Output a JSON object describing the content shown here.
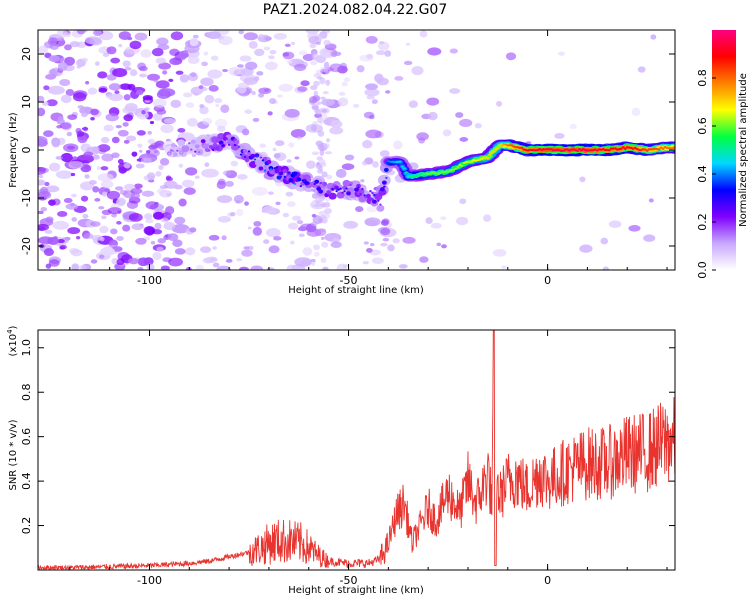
{
  "figure": {
    "title": "PAZ1.2024.082.04.22.G07"
  },
  "chart_data": [
    {
      "type": "heatmap",
      "title": "PAZ1.2024.082.04.22.G07",
      "xlabel": "Height of straight line (km)",
      "ylabel": "Frequency (Hz)",
      "xlim": [
        -128,
        32
      ],
      "ylim": [
        -25,
        25
      ],
      "xticks": [
        -100,
        -50,
        0
      ],
      "yticks": [
        -20,
        -10,
        0,
        10,
        20
      ],
      "colorbar": {
        "label": "Normalized spectral amplitude",
        "range": [
          0,
          1
        ],
        "ticks": [
          "0.0",
          "0.2",
          "0.4",
          "0.6",
          "0.8"
        ],
        "colors": [
          "#ffffff",
          "#c8a8ff",
          "#7f00ff",
          "#0000ff",
          "#00d8ff",
          "#00ff40",
          "#ffff00",
          "#ff8000",
          "#ff0000",
          "#ff0080"
        ]
      },
      "ridge": {
        "name_hint": "signal frequency track",
        "x": [
          -95,
          -90,
          -85,
          -80,
          -75,
          -70,
          -65,
          -60,
          -55,
          -50,
          -45,
          -42,
          -40,
          -37,
          -35,
          -30,
          -25,
          -20,
          -15,
          -12,
          -10,
          -5,
          0,
          5,
          10,
          15,
          20,
          25,
          30,
          32
        ],
        "y": [
          0,
          0.5,
          1,
          2,
          -1.5,
          -3.5,
          -5.5,
          -7,
          -8.5,
          -8,
          -9.5,
          -11,
          -2.5,
          -2.5,
          -5.5,
          -5,
          -4.5,
          -2.5,
          -1.5,
          1,
          1,
          0,
          0,
          0,
          0,
          0,
          0.5,
          0,
          0.5,
          0.5
        ],
        "amplitude": [
          0.15,
          0.2,
          0.25,
          0.3,
          0.3,
          0.35,
          0.35,
          0.3,
          0.3,
          0.3,
          0.3,
          0.3,
          0.4,
          0.45,
          0.5,
          0.6,
          0.6,
          0.65,
          0.7,
          0.7,
          0.8,
          0.9,
          0.95,
          0.95,
          0.95,
          0.9,
          0.9,
          0.85,
          0.8,
          0.8
        ]
      }
    },
    {
      "type": "line",
      "xlabel": "Height of straight line (km)",
      "ylabel": "SNR (10 * v/v)",
      "y_multiplier": "(x10",
      "y_multiplier_exp": "4",
      "y_multiplier_close": ")",
      "xlim": [
        -128,
        32
      ],
      "ylim": [
        0,
        1.08
      ],
      "xticks": [
        -100,
        -50,
        0
      ],
      "yticks": [
        "0.2",
        "0.4",
        "0.6",
        "0.8",
        "1.0"
      ],
      "color": "#e8332e",
      "series": [
        {
          "x": [
            -128,
            -120,
            -110,
            -100,
            -95,
            -90,
            -85,
            -80,
            -75,
            -72,
            -70,
            -68,
            -65,
            -62,
            -60,
            -58,
            -55,
            -50,
            -45,
            -42,
            -40,
            -38,
            -36,
            -34,
            -32,
            -30,
            -28,
            -25,
            -22,
            -20,
            -18,
            -16,
            -15,
            -14,
            -13.5,
            -13,
            -12,
            -10,
            -8,
            -5,
            -2,
            0,
            5,
            10,
            15,
            20,
            25,
            30,
            32
          ],
          "y": [
            0.01,
            0.01,
            0.015,
            0.02,
            0.025,
            0.03,
            0.04,
            0.06,
            0.08,
            0.1,
            0.12,
            0.13,
            0.13,
            0.12,
            0.1,
            0.07,
            0.04,
            0.03,
            0.03,
            0.05,
            0.12,
            0.25,
            0.3,
            0.12,
            0.2,
            0.28,
            0.22,
            0.35,
            0.26,
            0.4,
            0.3,
            0.38,
            0.45,
            0.3,
            0.9,
            0.38,
            0.33,
            0.4,
            0.42,
            0.36,
            0.44,
            0.4,
            0.45,
            0.48,
            0.48,
            0.52,
            0.53,
            0.58,
            0.58
          ]
        }
      ]
    }
  ]
}
